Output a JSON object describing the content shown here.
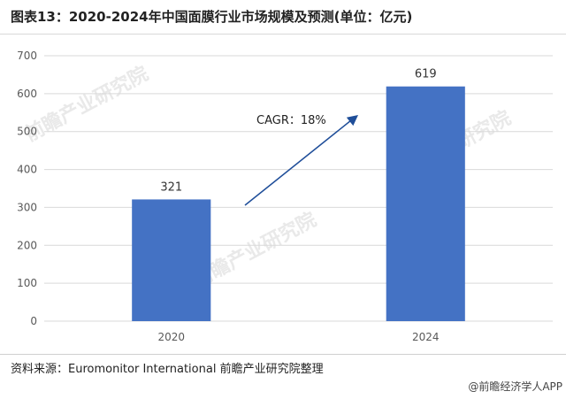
{
  "header": {
    "title": "图表13：2020-2024年中国面膜行业市场规模及预测(单位：亿元)"
  },
  "footer": {
    "source": "资料来源：Euromonitor International 前瞻产业研究院整理",
    "credit": "@前瞻经济学人APP"
  },
  "watermark": {
    "text": "前瞻产业研究院"
  },
  "colors": {
    "bar": "#4472c4",
    "arrow": "#1f4e99",
    "grid": "#d9d9d9",
    "axis_text": "#595959"
  },
  "chart_data": {
    "type": "bar",
    "categories": [
      "2020",
      "2024"
    ],
    "values": [
      321,
      619
    ],
    "data_labels": [
      "321",
      "619"
    ],
    "ylim": [
      0,
      700
    ],
    "yticks": [
      "0",
      "100",
      "200",
      "300",
      "400",
      "500",
      "600",
      "700"
    ],
    "grid": "horizontal",
    "annotation": "CAGR：18%"
  }
}
